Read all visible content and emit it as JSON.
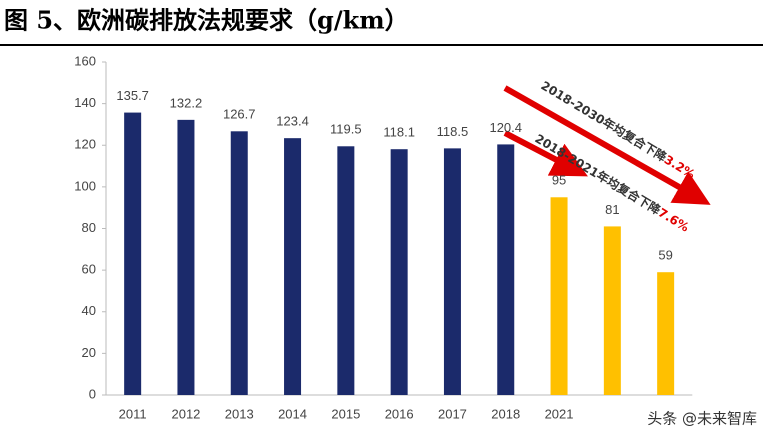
{
  "chart_data": {
    "type": "bar",
    "title": "图 5、欧洲碳排放法规要求（g/km）",
    "categories": [
      "2011",
      "2012",
      "2013",
      "2014",
      "2015",
      "2016",
      "2017",
      "2018",
      "2021",
      null,
      null
    ],
    "values": [
      135.7,
      132.2,
      126.7,
      123.4,
      119.5,
      118.1,
      118.5,
      120.4,
      95,
      81,
      59
    ],
    "colors": [
      "#1b2a6b",
      "#1b2a6b",
      "#1b2a6b",
      "#1b2a6b",
      "#1b2a6b",
      "#1b2a6b",
      "#1b2a6b",
      "#1b2a6b",
      "#ffc000",
      "#ffc000",
      "#ffc000"
    ],
    "ylim": [
      0,
      160
    ],
    "yticks": [
      0,
      20,
      40,
      60,
      80,
      100,
      120,
      140,
      160
    ],
    "grid": false,
    "annotations": [
      {
        "text": "2018-2030年均复合下降",
        "highlight": "3.2%"
      },
      {
        "text": "2018-2021年均复合下降",
        "highlight": "7.6%"
      }
    ],
    "watermark": "头条 @未来智库"
  }
}
